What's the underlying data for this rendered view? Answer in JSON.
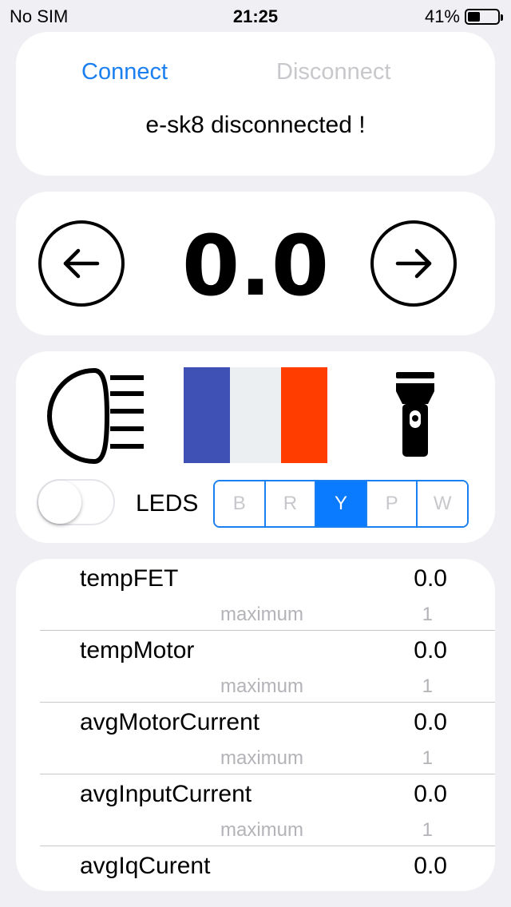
{
  "status_bar": {
    "carrier": "No SIM",
    "time": "21:25",
    "battery_percent": "41%",
    "battery_level": 0.41
  },
  "connection": {
    "connect_label": "Connect",
    "disconnect_label": "Disconnect",
    "status_text": "e-sk8 disconnected !"
  },
  "speed": {
    "value": "0.0",
    "left_icon": "arrow-left-icon",
    "right_icon": "arrow-right-icon"
  },
  "lights": {
    "headlight_icon": "headlight-icon",
    "flashlight_icon": "flashlight-icon",
    "flag_colors": [
      "#3f51b5",
      "#eceff1",
      "#ff3d00"
    ],
    "leds_label": "LEDS",
    "leds_toggle_on": false,
    "led_options": [
      "B",
      "R",
      "Y",
      "P",
      "W"
    ],
    "led_selected": "Y",
    "accent_color": "#0a7aff"
  },
  "telemetry": [
    {
      "name": "tempFET",
      "value": "0.0",
      "max_label": "maximum",
      "max_value": "1"
    },
    {
      "name": "tempMotor",
      "value": "0.0",
      "max_label": "maximum",
      "max_value": "1"
    },
    {
      "name": "avgMotorCurrent",
      "value": "0.0",
      "max_label": "maximum",
      "max_value": "1"
    },
    {
      "name": "avgInputCurrent",
      "value": "0.0",
      "max_label": "maximum",
      "max_value": "1"
    },
    {
      "name": "avgIqCurent",
      "value": "0.0",
      "max_label": "",
      "max_value": ""
    }
  ]
}
